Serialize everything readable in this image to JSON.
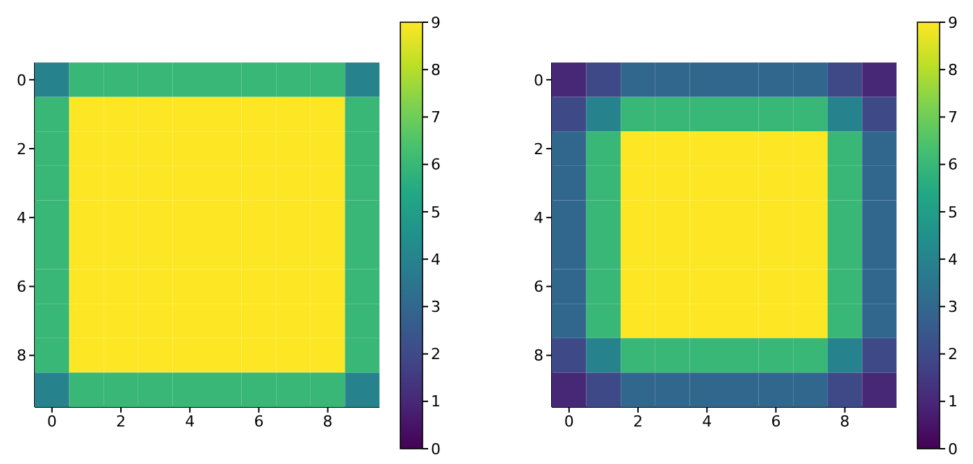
{
  "chart_data": [
    {
      "type": "heatmap",
      "xlim": [
        -0.5,
        9.5
      ],
      "ylim": [
        9.5,
        -0.5
      ],
      "xticks": [
        0,
        2,
        4,
        6,
        8
      ],
      "yticks": [
        0,
        2,
        4,
        6,
        8
      ],
      "clim": [
        0,
        9
      ],
      "cticks": [
        0,
        1,
        2,
        3,
        4,
        5,
        6,
        7,
        8,
        9
      ],
      "cells": [
        [
          4,
          6,
          6,
          6,
          6,
          6,
          6,
          6,
          6,
          4
        ],
        [
          6,
          9,
          9,
          9,
          9,
          9,
          9,
          9,
          9,
          6
        ],
        [
          6,
          9,
          9,
          9,
          9,
          9,
          9,
          9,
          9,
          6
        ],
        [
          6,
          9,
          9,
          9,
          9,
          9,
          9,
          9,
          9,
          6
        ],
        [
          6,
          9,
          9,
          9,
          9,
          9,
          9,
          9,
          9,
          6
        ],
        [
          6,
          9,
          9,
          9,
          9,
          9,
          9,
          9,
          9,
          6
        ],
        [
          6,
          9,
          9,
          9,
          9,
          9,
          9,
          9,
          9,
          6
        ],
        [
          6,
          9,
          9,
          9,
          9,
          9,
          9,
          9,
          9,
          6
        ],
        [
          6,
          9,
          9,
          9,
          9,
          9,
          9,
          9,
          9,
          6
        ],
        [
          4,
          6,
          6,
          6,
          6,
          6,
          6,
          6,
          6,
          4
        ]
      ]
    },
    {
      "type": "heatmap",
      "xlim": [
        -0.5,
        9.5
      ],
      "ylim": [
        9.5,
        -0.5
      ],
      "xticks": [
        0,
        2,
        4,
        6,
        8
      ],
      "yticks": [
        0,
        2,
        4,
        6,
        8
      ],
      "clim": [
        0,
        9
      ],
      "cticks": [
        0,
        1,
        2,
        3,
        4,
        5,
        6,
        7,
        8,
        9
      ],
      "cells": [
        [
          1,
          2,
          3,
          3,
          3,
          3,
          3,
          3,
          2,
          1
        ],
        [
          2,
          4,
          6,
          6,
          6,
          6,
          6,
          6,
          4,
          2
        ],
        [
          3,
          6,
          9,
          9,
          9,
          9,
          9,
          9,
          6,
          3
        ],
        [
          3,
          6,
          9,
          9,
          9,
          9,
          9,
          9,
          6,
          3
        ],
        [
          3,
          6,
          9,
          9,
          9,
          9,
          9,
          9,
          6,
          3
        ],
        [
          3,
          6,
          9,
          9,
          9,
          9,
          9,
          9,
          6,
          3
        ],
        [
          3,
          6,
          9,
          9,
          9,
          9,
          9,
          9,
          6,
          3
        ],
        [
          3,
          6,
          9,
          9,
          9,
          9,
          9,
          9,
          6,
          3
        ],
        [
          2,
          4,
          6,
          6,
          6,
          6,
          6,
          6,
          4,
          2
        ],
        [
          1,
          2,
          3,
          3,
          3,
          3,
          3,
          3,
          2,
          1
        ]
      ]
    }
  ]
}
